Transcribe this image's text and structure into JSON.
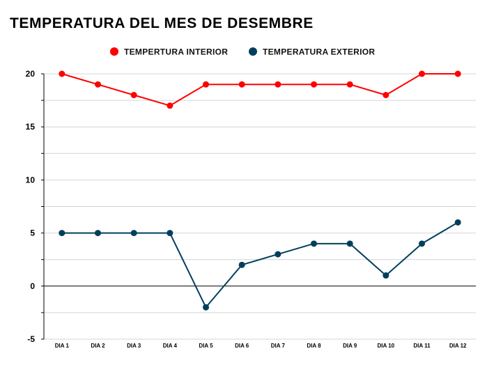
{
  "chart_data": {
    "type": "line",
    "title": "TEMPERATURA DEL MES DE DESEMBRE",
    "categories": [
      "DIA 1",
      "DIA 2",
      "DIA 3",
      "DIA 4",
      "DIA 5",
      "DIA 6",
      "DIA 7",
      "DIA 8",
      "DIA 9",
      "DIA 10",
      "DIA 11",
      "DIA 12"
    ],
    "series": [
      {
        "name": "TEMPERTURA INTERIOR",
        "color": "#ff0000",
        "values": [
          20,
          19,
          18,
          17,
          19,
          19,
          19,
          19,
          19,
          18,
          20,
          20
        ]
      },
      {
        "name": "TEMPERATURA EXTERIOR",
        "color": "#003f5c",
        "values": [
          5,
          5,
          5,
          5,
          -2,
          2,
          3,
          4,
          4,
          1,
          4,
          6
        ]
      }
    ],
    "ylim": [
      -5,
      20
    ],
    "yticks": [
      "20",
      "15",
      "10",
      "5",
      "0",
      "-5"
    ],
    "xlabel": "",
    "ylabel": "",
    "grid": true,
    "legend": "top-center"
  }
}
